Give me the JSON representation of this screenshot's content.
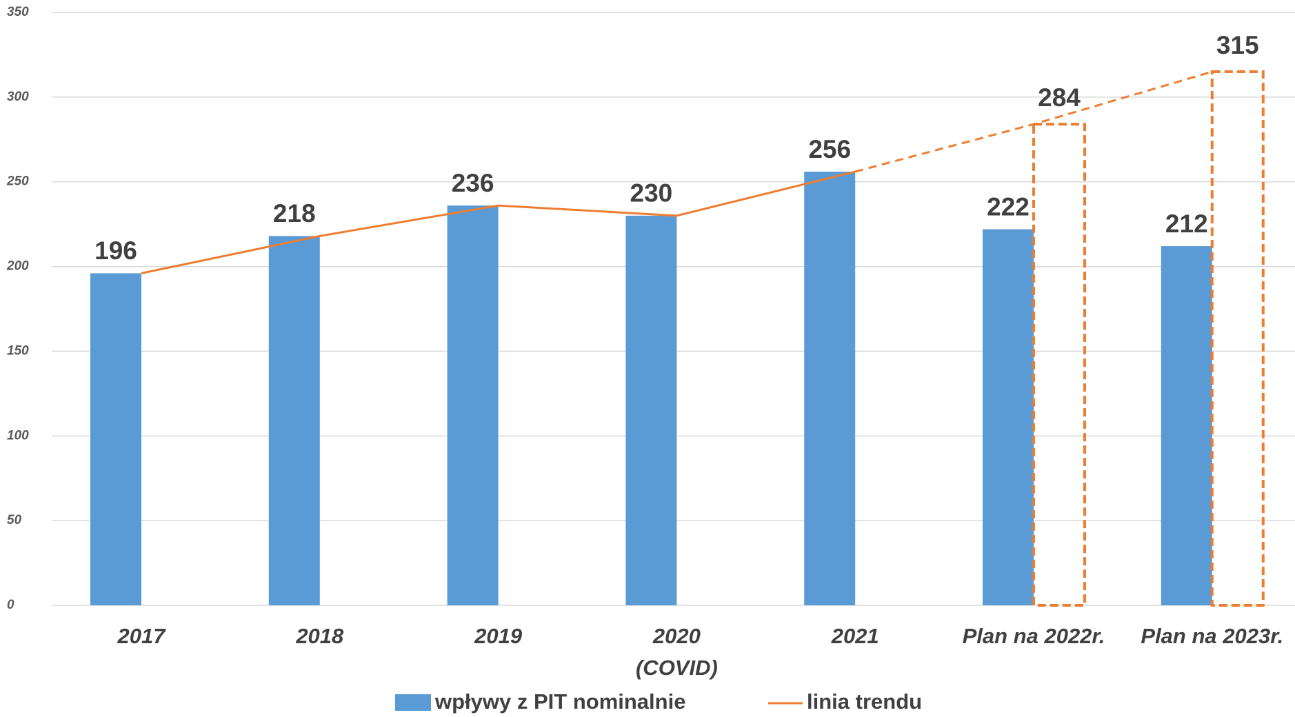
{
  "chart_data": {
    "type": "bar",
    "categories": [
      "2017",
      "2018",
      "2019",
      "2020\n(COVID)",
      "2021",
      "Plan na 2022r.",
      "Plan na 2023r."
    ],
    "series": [
      {
        "name": "wpływy z PIT nominalnie",
        "color": "#5b9bd5",
        "type": "bar",
        "values": [
          196,
          218,
          236,
          230,
          256,
          222,
          212
        ]
      },
      {
        "name": "linia trendu",
        "color": "#ed7d31",
        "type": "line",
        "dashed_from": 4,
        "values": [
          196,
          218,
          236,
          230,
          256,
          284,
          315
        ]
      }
    ],
    "ylim": [
      0,
      350
    ],
    "yticks": [
      0,
      50,
      100,
      150,
      200,
      250,
      300,
      350
    ],
    "grid": true
  }
}
